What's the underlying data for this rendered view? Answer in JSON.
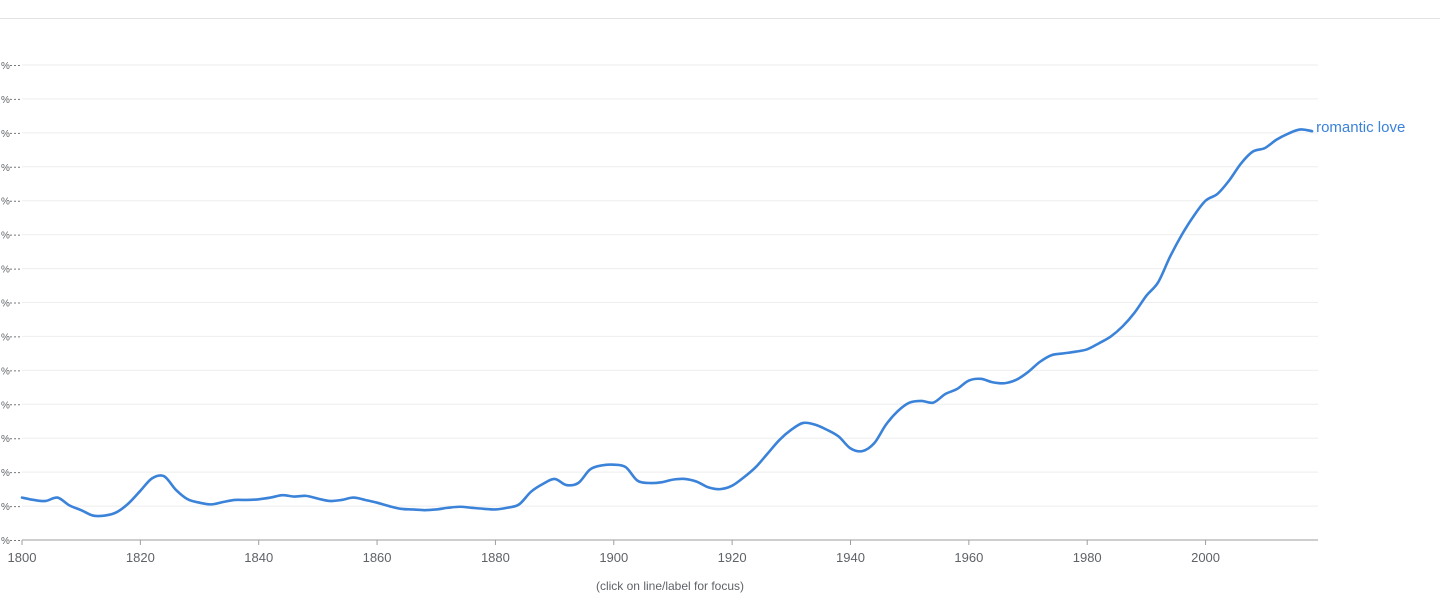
{
  "caption": "(click on line/label for focus)",
  "chart_data": {
    "type": "line",
    "xlim": [
      1800,
      2019
    ],
    "x_ticks": [
      1800,
      1820,
      1840,
      1860,
      1880,
      1900,
      1920,
      1940,
      1960,
      1980,
      2000
    ],
    "y_tick_labels": [
      "%",
      "%",
      "%",
      "%",
      "%",
      "%",
      "%",
      "%",
      "%",
      "%",
      "%",
      "%",
      "%",
      "%",
      "%"
    ],
    "ylim": [
      0,
      14
    ],
    "grid": true,
    "series": [
      {
        "name": "romantic love",
        "color": "#3b82d9",
        "points": [
          [
            1800,
            1.25
          ],
          [
            1802,
            1.18
          ],
          [
            1804,
            1.15
          ],
          [
            1806,
            1.25
          ],
          [
            1808,
            1.02
          ],
          [
            1810,
            0.88
          ],
          [
            1812,
            0.72
          ],
          [
            1814,
            0.72
          ],
          [
            1816,
            0.82
          ],
          [
            1818,
            1.08
          ],
          [
            1820,
            1.45
          ],
          [
            1822,
            1.82
          ],
          [
            1824,
            1.88
          ],
          [
            1826,
            1.48
          ],
          [
            1828,
            1.2
          ],
          [
            1830,
            1.1
          ],
          [
            1832,
            1.05
          ],
          [
            1834,
            1.12
          ],
          [
            1836,
            1.18
          ],
          [
            1838,
            1.18
          ],
          [
            1840,
            1.2
          ],
          [
            1842,
            1.25
          ],
          [
            1844,
            1.32
          ],
          [
            1846,
            1.28
          ],
          [
            1848,
            1.3
          ],
          [
            1850,
            1.22
          ],
          [
            1852,
            1.15
          ],
          [
            1854,
            1.18
          ],
          [
            1856,
            1.25
          ],
          [
            1858,
            1.18
          ],
          [
            1860,
            1.1
          ],
          [
            1862,
            1.0
          ],
          [
            1864,
            0.92
          ],
          [
            1866,
            0.9
          ],
          [
            1868,
            0.88
          ],
          [
            1870,
            0.9
          ],
          [
            1872,
            0.95
          ],
          [
            1874,
            0.98
          ],
          [
            1876,
            0.95
          ],
          [
            1878,
            0.92
          ],
          [
            1880,
            0.9
          ],
          [
            1882,
            0.95
          ],
          [
            1884,
            1.05
          ],
          [
            1886,
            1.42
          ],
          [
            1888,
            1.65
          ],
          [
            1890,
            1.8
          ],
          [
            1892,
            1.62
          ],
          [
            1894,
            1.68
          ],
          [
            1896,
            2.08
          ],
          [
            1898,
            2.2
          ],
          [
            1900,
            2.22
          ],
          [
            1902,
            2.15
          ],
          [
            1904,
            1.75
          ],
          [
            1906,
            1.68
          ],
          [
            1908,
            1.7
          ],
          [
            1910,
            1.78
          ],
          [
            1912,
            1.8
          ],
          [
            1914,
            1.72
          ],
          [
            1916,
            1.55
          ],
          [
            1918,
            1.5
          ],
          [
            1920,
            1.6
          ],
          [
            1922,
            1.85
          ],
          [
            1924,
            2.15
          ],
          [
            1926,
            2.55
          ],
          [
            1928,
            2.95
          ],
          [
            1930,
            3.25
          ],
          [
            1932,
            3.45
          ],
          [
            1934,
            3.4
          ],
          [
            1936,
            3.25
          ],
          [
            1938,
            3.05
          ],
          [
            1940,
            2.7
          ],
          [
            1942,
            2.62
          ],
          [
            1944,
            2.85
          ],
          [
            1946,
            3.4
          ],
          [
            1948,
            3.8
          ],
          [
            1950,
            4.05
          ],
          [
            1952,
            4.1
          ],
          [
            1954,
            4.05
          ],
          [
            1956,
            4.3
          ],
          [
            1958,
            4.45
          ],
          [
            1960,
            4.7
          ],
          [
            1962,
            4.75
          ],
          [
            1964,
            4.65
          ],
          [
            1966,
            4.62
          ],
          [
            1968,
            4.72
          ],
          [
            1970,
            4.95
          ],
          [
            1972,
            5.25
          ],
          [
            1974,
            5.45
          ],
          [
            1976,
            5.5
          ],
          [
            1978,
            5.55
          ],
          [
            1980,
            5.62
          ],
          [
            1982,
            5.8
          ],
          [
            1984,
            6.0
          ],
          [
            1986,
            6.3
          ],
          [
            1988,
            6.7
          ],
          [
            1990,
            7.2
          ],
          [
            1992,
            7.6
          ],
          [
            1994,
            8.35
          ],
          [
            1996,
            9.0
          ],
          [
            1998,
            9.55
          ],
          [
            2000,
            10.0
          ],
          [
            2002,
            10.2
          ],
          [
            2004,
            10.6
          ],
          [
            2006,
            11.1
          ],
          [
            2008,
            11.45
          ],
          [
            2010,
            11.55
          ],
          [
            2012,
            11.8
          ],
          [
            2014,
            11.98
          ],
          [
            2016,
            12.1
          ],
          [
            2018,
            12.05
          ]
        ]
      }
    ]
  }
}
